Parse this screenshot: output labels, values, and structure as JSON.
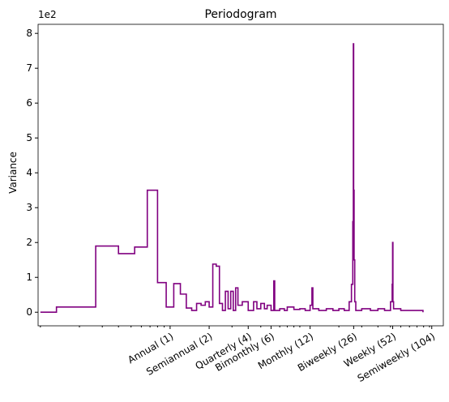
{
  "chart_data": {
    "type": "step",
    "title": "Periodogram",
    "ylabel": "Variance",
    "y_offset_label": "1e2",
    "xscale": "log",
    "color": "#800080",
    "x": [
      0.1,
      0.133,
      0.267,
      0.4,
      0.533,
      0.667,
      0.8,
      0.933,
      1.067,
      1.2,
      1.333,
      1.467,
      1.6,
      1.733,
      1.867,
      2.0,
      2.133,
      2.267,
      2.4,
      2.533,
      2.667,
      2.8,
      2.933,
      3.067,
      3.2,
      3.333,
      3.6,
      4.0,
      4.4,
      4.667,
      5.0,
      5.333,
      5.6,
      6.0,
      6.3,
      6.4,
      7.0,
      7.6,
      8.0,
      9.0,
      10.0,
      11.0,
      12.0,
      12.4,
      12.6,
      14.0,
      16.0,
      18.0,
      20.0,
      22.0,
      24.0,
      25.0,
      25.6,
      25.85,
      26.0,
      26.2,
      26.5,
      27.0,
      30.0,
      35.0,
      40.0,
      45.0,
      50.0,
      51.5,
      51.9,
      52.2,
      52.8,
      60.0,
      70.0,
      80.0,
      89.0
    ],
    "values": [
      0,
      0.15,
      1.9,
      1.68,
      1.87,
      3.5,
      0.85,
      0.15,
      0.82,
      0.52,
      0.12,
      0.05,
      0.25,
      0.2,
      0.3,
      0.15,
      1.38,
      1.32,
      0.25,
      0.05,
      0.6,
      0.1,
      0.6,
      0.05,
      0.7,
      0.2,
      0.3,
      0.05,
      0.3,
      0.1,
      0.25,
      0.1,
      0.2,
      0.05,
      0.9,
      0.05,
      0.1,
      0.05,
      0.15,
      0.08,
      0.1,
      0.05,
      0.2,
      0.7,
      0.1,
      0.05,
      0.1,
      0.05,
      0.1,
      0.05,
      0.3,
      0.8,
      2.6,
      7.7,
      3.5,
      1.5,
      0.3,
      0.05,
      0.1,
      0.05,
      0.1,
      0.05,
      0.3,
      0.8,
      2.0,
      0.3,
      0.1,
      0.05,
      0.05,
      0.05,
      0.0
    ],
    "xlim": [
      0.096,
      127.7
    ],
    "ylim": [
      -0.39,
      8.26
    ],
    "yticks": [
      0,
      1,
      2,
      3,
      4,
      5,
      6,
      7,
      8
    ],
    "xticks": [
      {
        "value": 1,
        "label": "Annual (1)"
      },
      {
        "value": 2,
        "label": "Semiannual (2)"
      },
      {
        "value": 4,
        "label": "Quarterly (4)"
      },
      {
        "value": 6,
        "label": "Bimonthly (6)"
      },
      {
        "value": 12,
        "label": "Monthly (12)"
      },
      {
        "value": 26,
        "label": "Biweekly (26)"
      },
      {
        "value": 52,
        "label": "Weekly (52)"
      },
      {
        "value": 104,
        "label": "Semiweekly (104)"
      }
    ],
    "xminorticks": [
      0.1,
      0.2,
      0.3,
      0.4,
      0.5,
      0.6,
      0.7,
      0.8,
      0.9,
      3,
      5,
      7,
      8,
      9,
      10,
      20,
      30,
      40,
      50,
      60,
      70,
      80,
      90,
      100
    ]
  }
}
